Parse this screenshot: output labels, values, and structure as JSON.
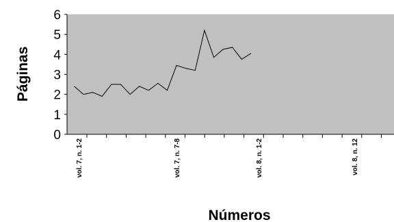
{
  "chart_data": {
    "type": "line",
    "title": "",
    "xlabel": "Números",
    "ylabel": "Páginas",
    "ylim": [
      0,
      6
    ],
    "yticks": [
      0,
      1,
      2,
      3,
      4,
      5,
      6
    ],
    "grid": false,
    "plot_background": "#c0c0c0",
    "line_color": "#000000",
    "categories_labeled": [
      "vol. 7, n. 1-2",
      "vol. 7, n. 7-8",
      "vol. 8, n. 1-2",
      "vol. 8, n. 12"
    ],
    "series": [
      {
        "values": [
          2.4,
          2.0,
          2.1,
          1.9,
          2.5,
          2.5,
          2.0,
          2.4,
          2.2,
          2.55,
          2.2,
          3.45,
          3.3,
          3.2,
          5.2,
          3.85,
          4.25,
          4.35,
          3.75,
          4.05
        ]
      }
    ]
  }
}
